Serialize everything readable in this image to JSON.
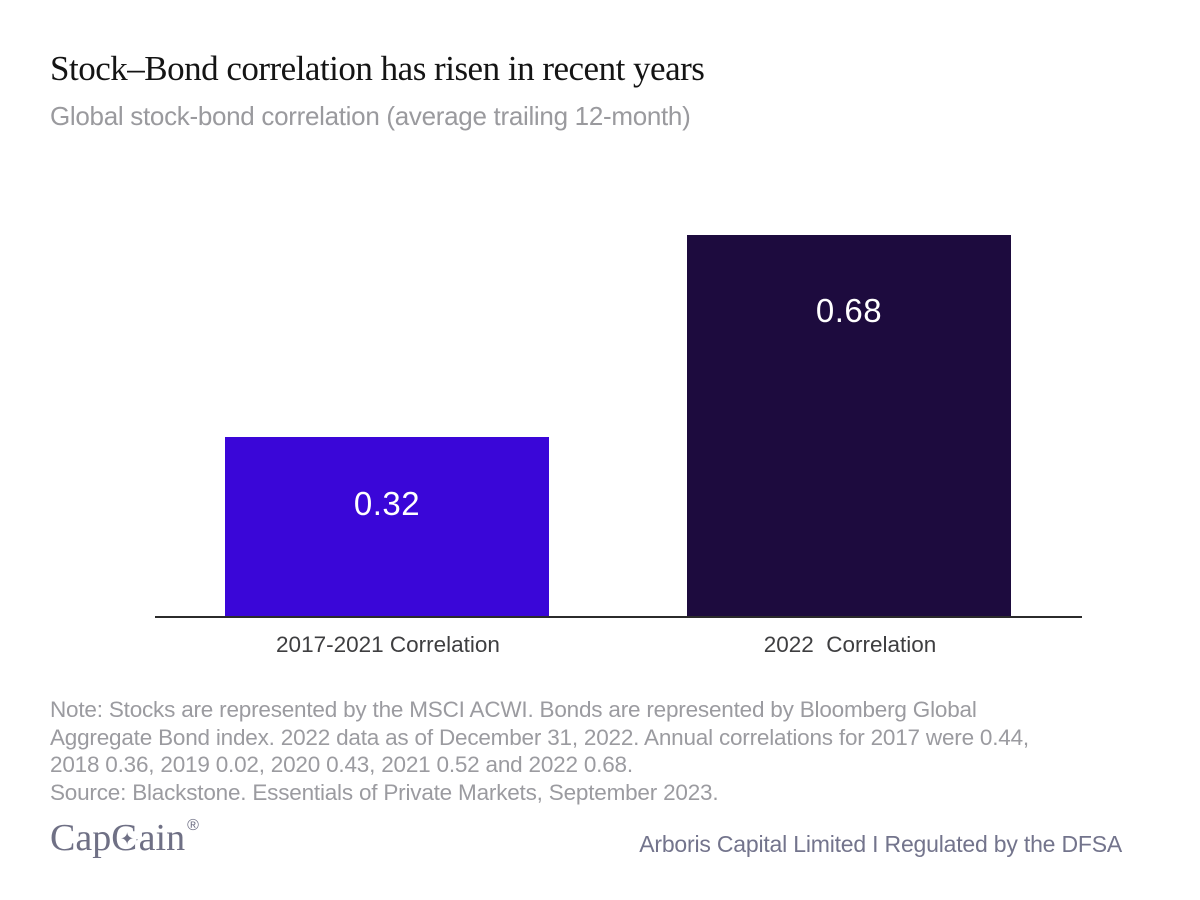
{
  "chart_data": {
    "type": "bar",
    "title": "Stock–Bond correlation has risen in recent years",
    "subtitle": "Global stock-bond correlation (average trailing 12-month)",
    "categories": [
      "2017-2021 Correlation",
      "2022  Correlation"
    ],
    "values": [
      0.32,
      0.68
    ],
    "value_labels": [
      "0.32",
      "0.68"
    ],
    "bar_colors": [
      "#3A06D8",
      "#1D0B3E"
    ],
    "ylim": [
      0,
      0.75
    ],
    "grid": false,
    "legend": false,
    "axis_line_color": "#2B2B2B",
    "value_label_color": "#FFFFFF"
  },
  "note": {
    "line1": "Note: Stocks are represented by the MSCI ACWI. Bonds are represented by Bloomberg Global",
    "line2": "Aggregate Bond index. 2022 data as of December 31, 2022. Annual correlations for 2017 were 0.44,",
    "line3": "2018 0.36, 2019 0.02, 2020 0.43, 2021 0.52 and 2022 0.68.",
    "source": "Source: Blackstone. Essentials of Private Markets, September 2023."
  },
  "footer": {
    "logo": {
      "prefix": "Cap",
      "g": "G",
      "suffix": "ain",
      "registered": "®",
      "star_icon": "✦"
    },
    "disclaimer": "Arboris Capital Limited I Regulated by the DFSA"
  },
  "colors": {
    "background": "#FFFFFF",
    "title": "#141414",
    "subtitle": "#9A9A9E",
    "note": "#9B9BA0",
    "tick_label": "#3E3E40",
    "logo": "#6F7085",
    "footer_text": "#73748C"
  }
}
